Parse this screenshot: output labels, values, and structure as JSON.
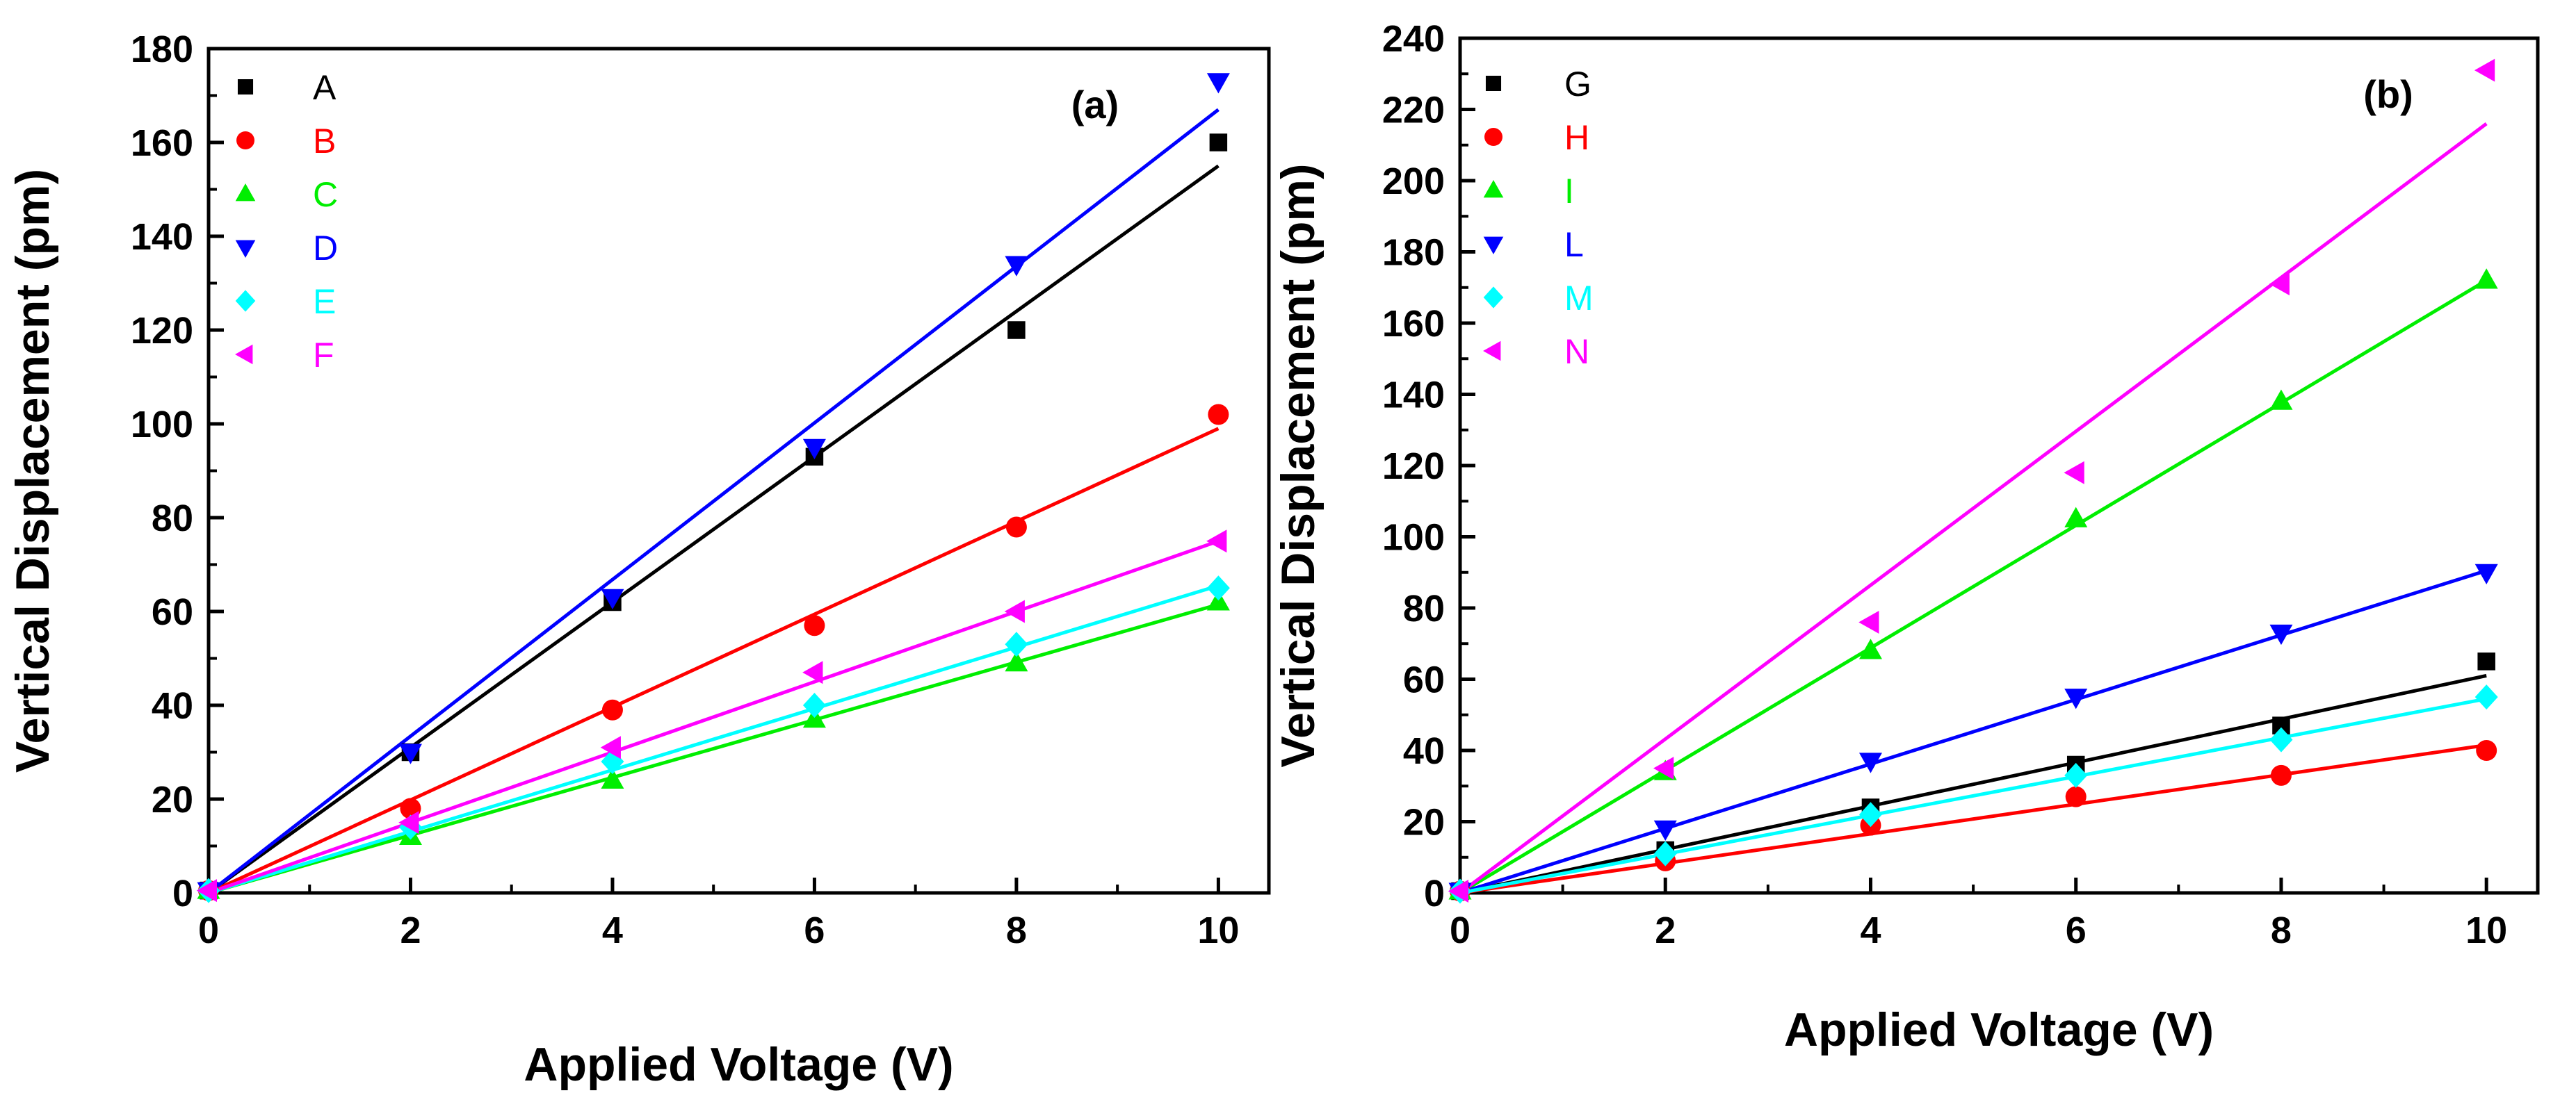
{
  "chart_data": [
    {
      "type": "scatter",
      "panel_label": "(a)",
      "xlabel": "Applied Voltage (V)",
      "ylabel": "Vertical Displacement (pm)",
      "xlim": [
        0,
        10.5
      ],
      "ylim": [
        0,
        180
      ],
      "xticks": [
        0,
        2,
        4,
        6,
        8,
        10
      ],
      "yticks": [
        0,
        20,
        40,
        60,
        80,
        100,
        120,
        140,
        160,
        180
      ],
      "legend_position": "top-left",
      "series": [
        {
          "name": "A",
          "color": "#000000",
          "marker": "square",
          "x": [
            0,
            2,
            4,
            6,
            8,
            10
          ],
          "y": [
            0.5,
            30,
            62,
            93,
            120,
            160
          ],
          "fit_slope": 15.5
        },
        {
          "name": "B",
          "color": "#ff0000",
          "marker": "circle",
          "x": [
            0,
            2,
            4,
            6,
            8,
            10
          ],
          "y": [
            0.5,
            18,
            39,
            57,
            78,
            102
          ],
          "fit_slope": 9.9
        },
        {
          "name": "C",
          "color": "#00ee00",
          "marker": "triangle-up",
          "x": [
            0,
            2,
            4,
            6,
            8,
            10
          ],
          "y": [
            0.5,
            12,
            24,
            37,
            49,
            62
          ],
          "fit_slope": 6.15
        },
        {
          "name": "D",
          "color": "#0000ff",
          "marker": "triangle-down",
          "x": [
            0,
            2,
            4,
            6,
            8,
            10
          ],
          "y": [
            0.5,
            30,
            63,
            95,
            134,
            173
          ],
          "fit_slope": 16.7
        },
        {
          "name": "E",
          "color": "#00ffff",
          "marker": "diamond",
          "x": [
            0,
            2,
            4,
            6,
            8,
            10
          ],
          "y": [
            0.5,
            14,
            28,
            40,
            53,
            65
          ],
          "fit_slope": 6.55
        },
        {
          "name": "F",
          "color": "#ff00ff",
          "marker": "triangle-left",
          "x": [
            0,
            2,
            4,
            6,
            8,
            10
          ],
          "y": [
            0.5,
            15,
            31,
            47,
            60,
            75
          ],
          "fit_slope": 7.5
        }
      ]
    },
    {
      "type": "scatter",
      "panel_label": "(b)",
      "xlabel": "Applied Voltage (V)",
      "ylabel": "Vertical Displacement (pm)",
      "xlim": [
        0,
        10.5
      ],
      "ylim": [
        0,
        240
      ],
      "xticks": [
        0,
        2,
        4,
        6,
        8,
        10
      ],
      "yticks": [
        0,
        20,
        40,
        60,
        80,
        100,
        120,
        140,
        160,
        180,
        200,
        220,
        240
      ],
      "legend_position": "top-left",
      "series": [
        {
          "name": "G",
          "color": "#000000",
          "marker": "square",
          "x": [
            0,
            2,
            4,
            6,
            8,
            10
          ],
          "y": [
            0.5,
            12,
            24,
            36,
            47,
            65
          ],
          "fit_slope": 6.1
        },
        {
          "name": "H",
          "color": "#ff0000",
          "marker": "circle",
          "x": [
            0,
            2,
            4,
            6,
            8,
            10
          ],
          "y": [
            0.5,
            9,
            19,
            27,
            33,
            40
          ],
          "fit_slope": 4.15
        },
        {
          "name": "I",
          "color": "#00ee00",
          "marker": "triangle-up",
          "x": [
            0,
            2,
            4,
            6,
            8,
            10
          ],
          "y": [
            0.5,
            34,
            68,
            105,
            138,
            172
          ],
          "fit_slope": 17.2
        },
        {
          "name": "L",
          "color": "#0000ff",
          "marker": "triangle-down",
          "x": [
            0,
            2,
            4,
            6,
            8,
            10
          ],
          "y": [
            0.5,
            18,
            37,
            55,
            73,
            90
          ],
          "fit_slope": 9.05
        },
        {
          "name": "M",
          "color": "#00ffff",
          "marker": "diamond",
          "x": [
            0,
            2,
            4,
            6,
            8,
            10
          ],
          "y": [
            0.5,
            11,
            22,
            33,
            43,
            55
          ],
          "fit_slope": 5.45
        },
        {
          "name": "N",
          "color": "#ff00ff",
          "marker": "triangle-left",
          "x": [
            0,
            2,
            4,
            6,
            8,
            10
          ],
          "y": [
            0.5,
            35,
            76,
            118,
            171,
            231
          ],
          "fit_slope": 21.6
        }
      ]
    }
  ]
}
